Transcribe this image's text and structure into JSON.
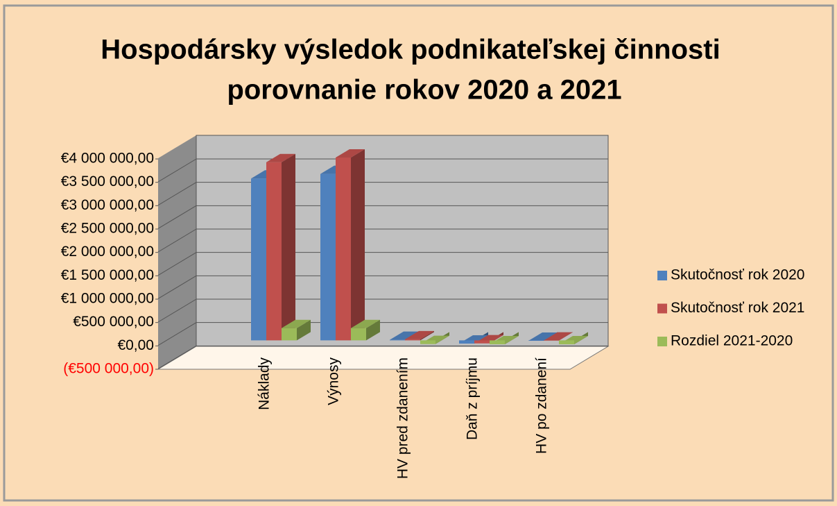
{
  "chart_data": {
    "type": "bar3d",
    "title": [
      "Hospodársky výsledok podnikateľskej činnosti",
      "porovnanie rokov 2020 a 2021"
    ],
    "categories": [
      "Náklady",
      "Výnosy",
      "HV pred zdanením",
      "Daň z príjmu",
      "HV po zdanení"
    ],
    "series": [
      {
        "name": "Skutočnosť rok 2020",
        "color": "#4f81bd",
        "values": [
          3550000,
          3650000,
          100000,
          20000,
          80000
        ]
      },
      {
        "name": "Skutočnosť rok 2021",
        "color": "#c0504d",
        "values": [
          3900000,
          4000000,
          110000,
          25000,
          85000
        ]
      },
      {
        "name": "Rozdiel 2021-2020",
        "color": "#9bbb59",
        "values": [
          350000,
          350000,
          10000,
          5000,
          5000
        ]
      }
    ],
    "ylim": [
      -500000,
      4000000
    ],
    "yticks": [
      {
        "value": -500000,
        "label": "(€500 000,00)"
      },
      {
        "value": 0,
        "label": "€0,00"
      },
      {
        "value": 500000,
        "label": "€500 000,00"
      },
      {
        "value": 1000000,
        "label": "€1 000 000,00"
      },
      {
        "value": 1500000,
        "label": "€1 500 000,00"
      },
      {
        "value": 2000000,
        "label": "€2 000 000,00"
      },
      {
        "value": 2500000,
        "label": "€2 500 000,00"
      },
      {
        "value": 3000000,
        "label": "€3 000 000,00"
      },
      {
        "value": 3500000,
        "label": "€3 500 000,00"
      },
      {
        "value": 4000000,
        "label": "€4 000 000,00"
      }
    ],
    "negative_label_color": "#ff0000",
    "grid": true,
    "legend": "right"
  }
}
